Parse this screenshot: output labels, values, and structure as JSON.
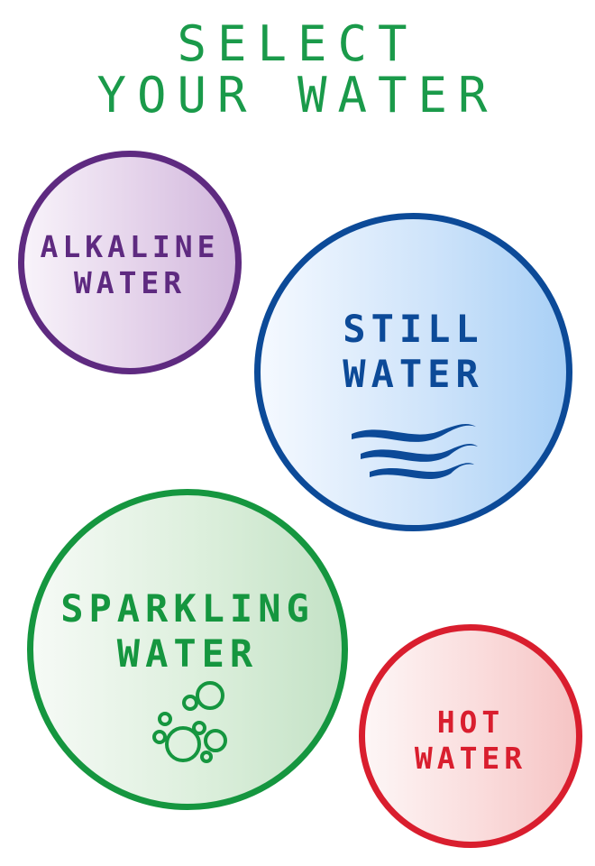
{
  "header": {
    "title_line1": "SELECT",
    "title_line2": "YOUR WATER"
  },
  "options": {
    "alkaline": {
      "line1": "ALKALINE",
      "line2": "WATER",
      "color": "#5e2a80"
    },
    "still": {
      "line1": "STILL",
      "line2": "WATER",
      "color": "#0c4a98",
      "icon": "waves-icon"
    },
    "sparkling": {
      "line1": "SPARKLING",
      "line2": "WATER",
      "color": "#15963f",
      "icon": "bubbles-icon"
    },
    "hot": {
      "line1": "HOT",
      "line2": "WATER",
      "color": "#d91e2e"
    }
  },
  "accent": "#1a9a4a"
}
